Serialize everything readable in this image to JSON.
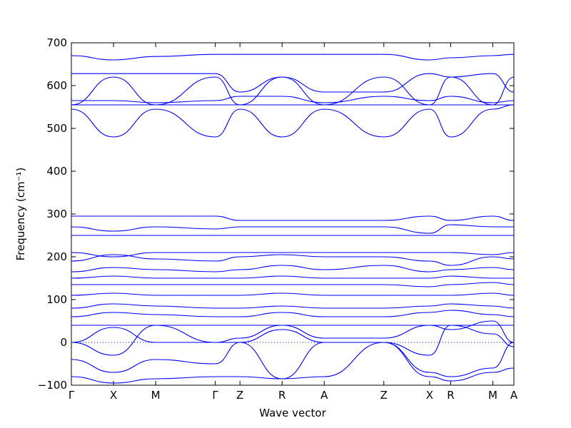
{
  "chart_data": {
    "type": "line",
    "title": "",
    "xlabel": "Wave vector",
    "ylabel": "Frequency (cm⁻¹)",
    "ylim": [
      -100,
      700
    ],
    "yticks": [
      -100,
      0,
      100,
      200,
      300,
      400,
      500,
      600,
      700
    ],
    "zero_line": true,
    "grid": false,
    "kpoint_labels": [
      {
        "label": "Γ",
        "x": 0.0
      },
      {
        "label": "X",
        "x": 0.5
      },
      {
        "label": "M",
        "x": 1.0
      },
      {
        "label": "Γ",
        "x": 1.707
      },
      {
        "label": "Z",
        "x": 2.0
      },
      {
        "label": "R",
        "x": 2.5
      },
      {
        "label": "A",
        "x": 3.0
      },
      {
        "label": "Z",
        "x": 3.707
      },
      {
        "label": "X",
        "x": 4.25
      },
      {
        "label": "R",
        "x": 4.5
      },
      {
        "label": "M",
        "x": 5.0
      },
      {
        "label": "A",
        "x": 5.25
      }
    ],
    "series": [
      {
        "name": "",
        "x": [
          0,
          0.5,
          1.0,
          1.707,
          2.0,
          2.5,
          3.0,
          3.707,
          4.25,
          4.5,
          5.0,
          5.25
        ],
        "values": [
          670,
          660,
          668,
          673,
          673,
          673,
          673,
          673,
          660,
          665,
          670,
          673
        ]
      },
      {
        "name": "",
        "x": [
          0,
          0.5,
          1.0,
          1.707,
          2.0,
          2.5,
          3.0,
          3.707,
          4.25,
          4.5,
          5.0,
          5.25
        ],
        "values": [
          628,
          628,
          628,
          628,
          585,
          620,
          585,
          585,
          628,
          620,
          628,
          585
        ]
      },
      {
        "name": "",
        "x": [
          0,
          0.5,
          1.0,
          1.707,
          2.0,
          2.5,
          3.0,
          3.707,
          4.25,
          4.5,
          5.0,
          5.25
        ],
        "values": [
          555,
          620,
          555,
          620,
          555,
          620,
          555,
          620,
          555,
          620,
          555,
          620
        ]
      },
      {
        "name": "",
        "x": [
          0,
          0.5,
          1.0,
          1.707,
          2.0,
          2.5,
          3.0,
          3.707,
          4.25,
          4.5,
          5.0,
          5.25
        ],
        "values": [
          565,
          565,
          560,
          565,
          575,
          575,
          560,
          575,
          565,
          575,
          560,
          565
        ]
      },
      {
        "name": "",
        "x": [
          0,
          0.5,
          1.0,
          1.707,
          2.0,
          2.5,
          3.0,
          3.707,
          4.25,
          4.5,
          5.0,
          5.25
        ],
        "values": [
          555,
          555,
          555,
          555,
          555,
          555,
          555,
          555,
          555,
          555,
          555,
          555
        ]
      },
      {
        "name": "",
        "x": [
          0,
          0.5,
          1.0,
          1.707,
          2.0,
          2.5,
          3.0,
          3.707,
          4.25,
          4.5,
          5.0,
          5.25
        ],
        "values": [
          545,
          480,
          545,
          480,
          545,
          480,
          545,
          480,
          545,
          480,
          545,
          555
        ]
      },
      {
        "name": "",
        "x": [
          0,
          0.5,
          1.0,
          1.707,
          2.0,
          2.5,
          3.0,
          3.707,
          4.25,
          4.5,
          5.0,
          5.25
        ],
        "values": [
          295,
          295,
          295,
          295,
          285,
          285,
          285,
          285,
          295,
          285,
          295,
          285
        ]
      },
      {
        "name": "",
        "x": [
          0,
          0.5,
          1.0,
          1.707,
          2.0,
          2.5,
          3.0,
          3.707,
          4.25,
          4.5,
          5.0,
          5.25
        ],
        "values": [
          270,
          260,
          270,
          265,
          270,
          270,
          270,
          270,
          255,
          275,
          270,
          270
        ]
      },
      {
        "name": "",
        "x": [
          0,
          0.5,
          1.0,
          1.707,
          2.0,
          2.5,
          3.0,
          3.707,
          4.25,
          4.5,
          5.0,
          5.25
        ],
        "values": [
          250,
          250,
          250,
          250,
          250,
          250,
          250,
          250,
          250,
          250,
          250,
          250
        ]
      },
      {
        "name": "",
        "x": [
          0,
          0.5,
          1.0,
          1.707,
          2.0,
          2.5,
          3.0,
          3.707,
          4.25,
          4.5,
          5.0,
          5.25
        ],
        "values": [
          210,
          200,
          210,
          210,
          210,
          210,
          210,
          210,
          210,
          210,
          205,
          210
        ]
      },
      {
        "name": "",
        "x": [
          0,
          0.5,
          1.0,
          1.707,
          2.0,
          2.5,
          3.0,
          3.707,
          4.25,
          4.5,
          5.0,
          5.25
        ],
        "values": [
          190,
          205,
          195,
          190,
          200,
          205,
          200,
          200,
          190,
          180,
          200,
          195
        ]
      },
      {
        "name": "",
        "x": [
          0,
          0.5,
          1.0,
          1.707,
          2.0,
          2.5,
          3.0,
          3.707,
          4.25,
          4.5,
          5.0,
          5.25
        ],
        "values": [
          165,
          175,
          170,
          165,
          170,
          180,
          170,
          180,
          165,
          170,
          175,
          170
        ]
      },
      {
        "name": "",
        "x": [
          0,
          0.5,
          1.0,
          1.707,
          2.0,
          2.5,
          3.0,
          3.707,
          4.25,
          4.5,
          5.0,
          5.25
        ],
        "values": [
          150,
          155,
          150,
          150,
          150,
          155,
          150,
          150,
          150,
          155,
          150,
          150
        ]
      },
      {
        "name": "",
        "x": [
          0,
          0.5,
          1.0,
          1.707,
          2.0,
          2.5,
          3.0,
          3.707,
          4.25,
          4.5,
          5.0,
          5.25
        ],
        "values": [
          135,
          135,
          135,
          135,
          135,
          135,
          135,
          135,
          130,
          135,
          140,
          135
        ]
      },
      {
        "name": "",
        "x": [
          0,
          0.5,
          1.0,
          1.707,
          2.0,
          2.5,
          3.0,
          3.707,
          4.25,
          4.5,
          5.0,
          5.25
        ],
        "values": [
          110,
          115,
          110,
          110,
          110,
          115,
          110,
          110,
          110,
          110,
          115,
          110
        ]
      },
      {
        "name": "",
        "x": [
          0,
          0.5,
          1.0,
          1.707,
          2.0,
          2.5,
          3.0,
          3.707,
          4.25,
          4.5,
          5.0,
          5.25
        ],
        "values": [
          80,
          90,
          85,
          80,
          80,
          85,
          80,
          80,
          85,
          90,
          85,
          80
        ]
      },
      {
        "name": "",
        "x": [
          0,
          0.5,
          1.0,
          1.707,
          2.0,
          2.5,
          3.0,
          3.707,
          4.25,
          4.5,
          5.0,
          5.25
        ],
        "values": [
          60,
          70,
          65,
          60,
          60,
          70,
          60,
          60,
          70,
          75,
          65,
          60
        ]
      },
      {
        "name": "",
        "x": [
          0,
          0.5,
          1.0,
          1.707,
          2.0,
          2.5,
          3.0,
          3.707,
          4.25,
          4.5,
          5.0,
          5.25
        ],
        "values": [
          40,
          40,
          40,
          40,
          40,
          40,
          40,
          40,
          40,
          40,
          40,
          40
        ]
      },
      {
        "name": "",
        "x": [
          0,
          0.5,
          1.0,
          1.707,
          2.0,
          2.5,
          3.0,
          3.707,
          4.25,
          4.5,
          5.0,
          5.25
        ],
        "values": [
          0,
          35,
          0,
          0,
          10,
          40,
          10,
          10,
          40,
          30,
          50,
          0
        ]
      },
      {
        "name": "",
        "x": [
          0,
          0.5,
          1.0,
          1.707,
          2.0,
          2.5,
          3.0,
          3.707,
          4.25,
          4.5,
          5.0,
          5.25
        ],
        "values": [
          0,
          -30,
          40,
          0,
          0,
          30,
          0,
          0,
          -30,
          40,
          20,
          -10
        ]
      },
      {
        "name": "",
        "x": [
          0,
          0.5,
          1.0,
          1.707,
          2.0,
          2.5,
          3.0,
          3.707,
          4.25,
          4.5,
          5.0,
          5.25
        ],
        "values": [
          -40,
          -70,
          -40,
          -50,
          0,
          -85,
          0,
          0,
          -70,
          -80,
          -60,
          0
        ]
      },
      {
        "name": "",
        "x": [
          0,
          0.5,
          1.0,
          1.707,
          2.0,
          2.5,
          3.0,
          3.707,
          4.25,
          4.5,
          5.0,
          5.25
        ],
        "values": [
          -80,
          -95,
          -85,
          -80,
          -80,
          -85,
          -80,
          0,
          -80,
          -90,
          -70,
          -60
        ]
      }
    ]
  }
}
